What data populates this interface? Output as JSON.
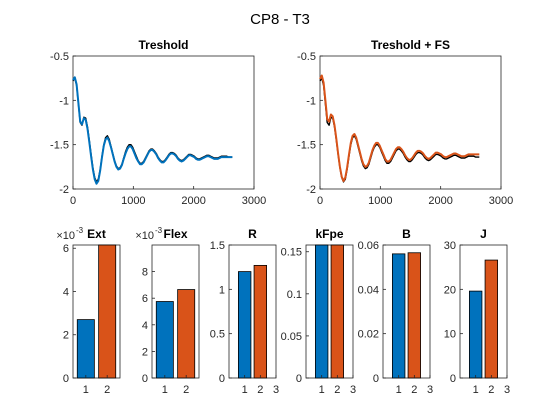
{
  "figure": {
    "title": "CP8 - T3"
  },
  "chart_data": [
    {
      "type": "line",
      "title": "Treshold",
      "xlim": [
        0,
        3000
      ],
      "ylim": [
        -2,
        -0.5
      ],
      "xticks": [
        "0",
        "1000",
        "2000",
        "3000"
      ],
      "yticks": [
        "-0.5",
        "-1",
        "-1.5",
        "-2"
      ],
      "grid": false,
      "series": [
        {
          "color": "#000000",
          "x": [
            0,
            30,
            60,
            90,
            120,
            150,
            180,
            210,
            240,
            270,
            300,
            330,
            360,
            390,
            420,
            450,
            480,
            510,
            540,
            570,
            600,
            630,
            660,
            690,
            720,
            750,
            780,
            810,
            840,
            870,
            900,
            930,
            960,
            990,
            1020,
            1050,
            1080,
            1110,
            1140,
            1170,
            1200,
            1230,
            1260,
            1290,
            1320,
            1350,
            1380,
            1410,
            1440,
            1470,
            1500,
            1530,
            1560,
            1590,
            1620,
            1650,
            1680,
            1710,
            1740,
            1770,
            1800,
            1830,
            1860,
            1890,
            1920,
            1950,
            1980,
            2010,
            2040,
            2070,
            2100,
            2130,
            2160,
            2190,
            2220,
            2250,
            2280,
            2310,
            2340,
            2370,
            2400,
            2430,
            2460,
            2490,
            2520,
            2550,
            2580,
            2610,
            2640
          ],
          "y": [
            -0.78,
            -0.75,
            -0.83,
            -1.04,
            -1.25,
            -1.28,
            -1.19,
            -1.2,
            -1.3,
            -1.45,
            -1.61,
            -1.76,
            -1.87,
            -1.92,
            -1.89,
            -1.78,
            -1.63,
            -1.5,
            -1.42,
            -1.4,
            -1.44,
            -1.52,
            -1.6,
            -1.68,
            -1.74,
            -1.77,
            -1.76,
            -1.72,
            -1.65,
            -1.58,
            -1.53,
            -1.5,
            -1.5,
            -1.53,
            -1.58,
            -1.63,
            -1.68,
            -1.71,
            -1.71,
            -1.69,
            -1.65,
            -1.61,
            -1.57,
            -1.55,
            -1.55,
            -1.57,
            -1.6,
            -1.64,
            -1.67,
            -1.69,
            -1.69,
            -1.67,
            -1.64,
            -1.61,
            -1.59,
            -1.59,
            -1.6,
            -1.62,
            -1.65,
            -1.67,
            -1.68,
            -1.67,
            -1.65,
            -1.63,
            -1.61,
            -1.61,
            -1.62,
            -1.63,
            -1.65,
            -1.66,
            -1.66,
            -1.65,
            -1.64,
            -1.63,
            -1.62,
            -1.62,
            -1.63,
            -1.64,
            -1.65,
            -1.65,
            -1.65,
            -1.64,
            -1.63,
            -1.63,
            -1.63,
            -1.63,
            -1.64,
            -1.64,
            -1.64
          ]
        },
        {
          "color": "#0072BD",
          "x": [
            0,
            30,
            60,
            90,
            120,
            150,
            180,
            210,
            240,
            270,
            300,
            330,
            360,
            390,
            420,
            450,
            480,
            510,
            540,
            570,
            600,
            630,
            660,
            690,
            720,
            750,
            780,
            810,
            840,
            870,
            900,
            930,
            960,
            990,
            1020,
            1050,
            1080,
            1110,
            1140,
            1170,
            1200,
            1230,
            1260,
            1290,
            1320,
            1350,
            1380,
            1410,
            1440,
            1470,
            1500,
            1530,
            1560,
            1590,
            1620,
            1650,
            1680,
            1710,
            1740,
            1770,
            1800,
            1830,
            1860,
            1890,
            1920,
            1950,
            1980,
            2010,
            2040,
            2070,
            2100,
            2130,
            2160,
            2190,
            2220,
            2250,
            2280,
            2310,
            2340,
            2370,
            2400,
            2430,
            2460,
            2490,
            2520,
            2550,
            2580,
            2610,
            2640
          ],
          "y": [
            -0.77,
            -0.74,
            -0.82,
            -1.03,
            -1.24,
            -1.27,
            -1.2,
            -1.22,
            -1.32,
            -1.47,
            -1.63,
            -1.78,
            -1.89,
            -1.94,
            -1.91,
            -1.79,
            -1.64,
            -1.51,
            -1.44,
            -1.42,
            -1.46,
            -1.53,
            -1.61,
            -1.69,
            -1.75,
            -1.78,
            -1.77,
            -1.73,
            -1.66,
            -1.6,
            -1.55,
            -1.52,
            -1.52,
            -1.55,
            -1.6,
            -1.65,
            -1.69,
            -1.72,
            -1.72,
            -1.7,
            -1.66,
            -1.62,
            -1.58,
            -1.56,
            -1.56,
            -1.58,
            -1.61,
            -1.65,
            -1.68,
            -1.7,
            -1.7,
            -1.68,
            -1.65,
            -1.62,
            -1.6,
            -1.6,
            -1.61,
            -1.63,
            -1.66,
            -1.68,
            -1.69,
            -1.68,
            -1.66,
            -1.64,
            -1.62,
            -1.62,
            -1.63,
            -1.64,
            -1.66,
            -1.67,
            -1.67,
            -1.66,
            -1.65,
            -1.64,
            -1.63,
            -1.63,
            -1.64,
            -1.65,
            -1.66,
            -1.66,
            -1.66,
            -1.65,
            -1.64,
            -1.64,
            -1.64,
            -1.64,
            -1.64,
            -1.64,
            -1.64
          ]
        }
      ]
    },
    {
      "type": "line",
      "title": "Treshold + FS",
      "xlim": [
        0,
        3000
      ],
      "ylim": [
        -2,
        -0.5
      ],
      "xticks": [
        "0",
        "1000",
        "2000",
        "3000"
      ],
      "yticks": [
        "-0.5",
        "-1",
        "-1.5",
        "-2"
      ],
      "grid": false,
      "series": [
        {
          "color": "#000000",
          "x": [
            0,
            30,
            60,
            90,
            120,
            150,
            180,
            210,
            240,
            270,
            300,
            330,
            360,
            390,
            420,
            450,
            480,
            510,
            540,
            570,
            600,
            630,
            660,
            690,
            720,
            750,
            780,
            810,
            840,
            870,
            900,
            930,
            960,
            990,
            1020,
            1050,
            1080,
            1110,
            1140,
            1170,
            1200,
            1230,
            1260,
            1290,
            1320,
            1350,
            1380,
            1410,
            1440,
            1470,
            1500,
            1530,
            1560,
            1590,
            1620,
            1650,
            1680,
            1710,
            1740,
            1770,
            1800,
            1830,
            1860,
            1890,
            1920,
            1950,
            1980,
            2010,
            2040,
            2070,
            2100,
            2130,
            2160,
            2190,
            2220,
            2250,
            2280,
            2310,
            2340,
            2370,
            2400,
            2430,
            2460,
            2490,
            2520,
            2550,
            2580,
            2610,
            2640
          ],
          "y": [
            -0.78,
            -0.75,
            -0.83,
            -1.04,
            -1.25,
            -1.28,
            -1.19,
            -1.2,
            -1.3,
            -1.45,
            -1.61,
            -1.76,
            -1.87,
            -1.92,
            -1.89,
            -1.78,
            -1.63,
            -1.5,
            -1.42,
            -1.4,
            -1.44,
            -1.52,
            -1.6,
            -1.68,
            -1.74,
            -1.77,
            -1.76,
            -1.72,
            -1.65,
            -1.58,
            -1.53,
            -1.5,
            -1.5,
            -1.53,
            -1.58,
            -1.63,
            -1.68,
            -1.71,
            -1.71,
            -1.69,
            -1.65,
            -1.61,
            -1.57,
            -1.55,
            -1.55,
            -1.57,
            -1.6,
            -1.64,
            -1.67,
            -1.69,
            -1.69,
            -1.67,
            -1.64,
            -1.61,
            -1.59,
            -1.59,
            -1.6,
            -1.62,
            -1.65,
            -1.67,
            -1.68,
            -1.67,
            -1.65,
            -1.63,
            -1.61,
            -1.61,
            -1.62,
            -1.63,
            -1.65,
            -1.66,
            -1.66,
            -1.65,
            -1.64,
            -1.63,
            -1.62,
            -1.62,
            -1.63,
            -1.64,
            -1.65,
            -1.65,
            -1.65,
            -1.64,
            -1.63,
            -1.63,
            -1.63,
            -1.63,
            -1.64,
            -1.64,
            -1.64
          ]
        },
        {
          "color": "#D95319",
          "x": [
            0,
            30,
            60,
            90,
            120,
            150,
            180,
            210,
            240,
            270,
            300,
            330,
            360,
            390,
            420,
            450,
            480,
            510,
            540,
            570,
            600,
            630,
            660,
            690,
            720,
            750,
            780,
            810,
            840,
            870,
            900,
            930,
            960,
            990,
            1020,
            1050,
            1080,
            1110,
            1140,
            1170,
            1200,
            1230,
            1260,
            1290,
            1320,
            1350,
            1380,
            1410,
            1440,
            1470,
            1500,
            1530,
            1560,
            1590,
            1620,
            1650,
            1680,
            1710,
            1740,
            1770,
            1800,
            1830,
            1860,
            1890,
            1920,
            1950,
            1980,
            2010,
            2040,
            2070,
            2100,
            2130,
            2160,
            2190,
            2220,
            2250,
            2280,
            2310,
            2340,
            2370,
            2400,
            2430,
            2460,
            2490,
            2520,
            2550,
            2580,
            2610,
            2640
          ],
          "y": [
            -0.76,
            -0.72,
            -0.8,
            -1.0,
            -1.21,
            -1.24,
            -1.16,
            -1.18,
            -1.28,
            -1.43,
            -1.6,
            -1.75,
            -1.86,
            -1.91,
            -1.87,
            -1.76,
            -1.61,
            -1.48,
            -1.4,
            -1.38,
            -1.42,
            -1.5,
            -1.58,
            -1.66,
            -1.72,
            -1.75,
            -1.74,
            -1.7,
            -1.63,
            -1.56,
            -1.51,
            -1.48,
            -1.48,
            -1.51,
            -1.56,
            -1.61,
            -1.66,
            -1.69,
            -1.69,
            -1.67,
            -1.63,
            -1.59,
            -1.55,
            -1.53,
            -1.53,
            -1.55,
            -1.58,
            -1.62,
            -1.65,
            -1.67,
            -1.67,
            -1.65,
            -1.62,
            -1.59,
            -1.57,
            -1.57,
            -1.58,
            -1.6,
            -1.63,
            -1.65,
            -1.66,
            -1.65,
            -1.63,
            -1.61,
            -1.59,
            -1.59,
            -1.6,
            -1.61,
            -1.63,
            -1.64,
            -1.64,
            -1.63,
            -1.62,
            -1.61,
            -1.6,
            -1.6,
            -1.61,
            -1.62,
            -1.63,
            -1.63,
            -1.63,
            -1.62,
            -1.61,
            -1.61,
            -1.61,
            -1.61,
            -1.61,
            -1.61,
            -1.61
          ]
        }
      ]
    },
    {
      "type": "bar",
      "title": "Ext",
      "exponent_label": "×10",
      "exponent_power": "-3",
      "categories": [
        "1",
        "2"
      ],
      "xlim": [
        0.4,
        2.6
      ],
      "xticks": [
        "1",
        "2"
      ],
      "ylim": [
        0,
        6.15
      ],
      "yticks": [
        "0",
        "2",
        "4",
        "6"
      ],
      "values": [
        2.7,
        6.15
      ],
      "colors": [
        "#0072BD",
        "#D95319"
      ]
    },
    {
      "type": "bar",
      "title": "Flex",
      "exponent_label": "×10",
      "exponent_power": "-3",
      "categories": [
        "1",
        "2"
      ],
      "xlim": [
        0.4,
        2.6
      ],
      "xticks": [
        "1",
        "2"
      ],
      "ylim": [
        0,
        10
      ],
      "yticks": [
        "0",
        "2",
        "4",
        "6",
        "8"
      ],
      "values": [
        5.75,
        6.65
      ],
      "colors": [
        "#0072BD",
        "#D95319"
      ]
    },
    {
      "type": "bar",
      "title": "R",
      "categories": [
        "1",
        "2"
      ],
      "xlim": [
        0,
        3
      ],
      "xticks": [
        "1",
        "2",
        "3"
      ],
      "ylim": [
        0,
        1.5
      ],
      "yticks": [
        "0",
        "0.5",
        "1",
        "1.5"
      ],
      "values": [
        1.2,
        1.27
      ],
      "colors": [
        "#0072BD",
        "#D95319"
      ]
    },
    {
      "type": "bar",
      "title": "kFpe",
      "categories": [
        "1",
        "2"
      ],
      "xlim": [
        0,
        3
      ],
      "xticks": [
        "1",
        "2",
        "3"
      ],
      "ylim": [
        0,
        0.158
      ],
      "yticks": [
        "0",
        "0.05",
        "0.1",
        "0.15"
      ],
      "values": [
        0.158,
        0.158
      ],
      "colors": [
        "#0072BD",
        "#D95319"
      ]
    },
    {
      "type": "bar",
      "title": "B",
      "categories": [
        "1",
        "2"
      ],
      "xlim": [
        0,
        3
      ],
      "xticks": [
        "1",
        "2",
        "3"
      ],
      "ylim": [
        0,
        0.06
      ],
      "yticks": [
        "0",
        "0.02",
        "0.04",
        "0.06"
      ],
      "values": [
        0.056,
        0.0565
      ],
      "colors": [
        "#0072BD",
        "#D95319"
      ]
    },
    {
      "type": "bar",
      "title": "J",
      "categories": [
        "1",
        "2"
      ],
      "xlim": [
        0,
        3
      ],
      "xticks": [
        "1",
        "2",
        "3"
      ],
      "ylim": [
        0,
        30
      ],
      "yticks": [
        "0",
        "10",
        "20",
        "30"
      ],
      "values": [
        19.6,
        26.6
      ],
      "colors": [
        "#0072BD",
        "#D95319"
      ]
    }
  ]
}
